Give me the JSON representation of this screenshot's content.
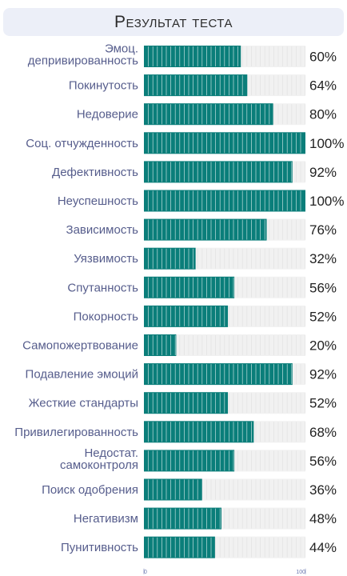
{
  "header": {
    "title": "Результат теста"
  },
  "chart_data": {
    "type": "bar",
    "orientation": "horizontal",
    "title": "Результат теста",
    "categories": [
      "Эмоц. депривированность",
      "Покинутость",
      "Недоверие",
      "Соц. отчужденность",
      "Дефективность",
      "Неуспешность",
      "Зависимость",
      "Уязвимость",
      "Спутанность",
      "Покорность",
      "Самопожертвование",
      "Подавление эмоций",
      "Жесткие стандарты",
      "Привилегированность",
      "Недостат. самоконтроля",
      "Поиск одобрения",
      "Негативизм",
      "Пунитивность"
    ],
    "label_lines": [
      [
        "Эмоц.",
        "депривированность"
      ],
      [
        "Покинутость"
      ],
      [
        "Недоверие"
      ],
      [
        "Соц. отчужденность"
      ],
      [
        "Дефективность"
      ],
      [
        "Неуспешность"
      ],
      [
        "Зависимость"
      ],
      [
        "Уязвимость"
      ],
      [
        "Спутанность"
      ],
      [
        "Покорность"
      ],
      [
        "Самопожертвование"
      ],
      [
        "Подавление эмоций"
      ],
      [
        "Жесткие стандарты"
      ],
      [
        "Привилегированность"
      ],
      [
        "Недостат.",
        "самоконтроля"
      ],
      [
        "Поиск одобрения"
      ],
      [
        "Негативизм"
      ],
      [
        "Пунитивность"
      ]
    ],
    "values": [
      60,
      64,
      80,
      100,
      92,
      100,
      76,
      32,
      56,
      52,
      20,
      92,
      52,
      68,
      56,
      36,
      48,
      44
    ],
    "value_labels": [
      "60%",
      "64%",
      "80%",
      "100%",
      "92%",
      "100%",
      "76%",
      "32%",
      "56%",
      "52%",
      "20%",
      "92%",
      "52%",
      "68%",
      "56%",
      "36%",
      "48%",
      "44%"
    ],
    "xlim": [
      0,
      100
    ],
    "x_ticks": [
      "0",
      "100"
    ],
    "colors": {
      "bar": "#0a7e7a",
      "track": "#f1f1f1",
      "segment_line": "#ffffff"
    }
  }
}
